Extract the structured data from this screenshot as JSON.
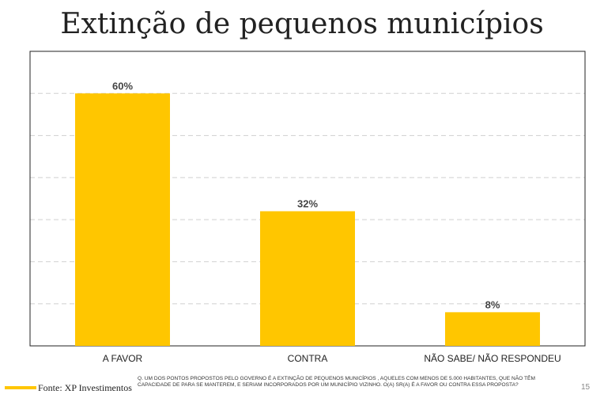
{
  "title": "Extinção de pequenos municípios",
  "chart_data": {
    "type": "bar",
    "categories": [
      "A FAVOR",
      "CONTRA",
      "NÃO SABE/ NÃO RESPONDEU"
    ],
    "values": [
      60,
      32,
      8
    ],
    "data_labels": [
      "60%",
      "32%",
      "8%"
    ],
    "ylim": [
      0,
      70
    ],
    "grid": true,
    "bar_color": "#FFC600",
    "title": "",
    "xlabel": "",
    "ylabel": ""
  },
  "footer": {
    "source": "Fonte: XP Investimentos",
    "question": "Q. UM DOS PONTOS PROPOSTOS PELO GOVERNO É A EXTINÇÃO DE PEQUENOS MUNICÍPIOS , AQUELES COM MENOS DE 5.000 HABITANTES, QUE NÃO TÊM CAPACIDADE DE PARA SE MANTEREM, E SERIAM INCORPORADOS POR UM MUNICÍPIO VIZINHO. O(A) SR(A) É A FAVOR OU CONTRA ESSA PROPOSTA?",
    "page": "15"
  }
}
